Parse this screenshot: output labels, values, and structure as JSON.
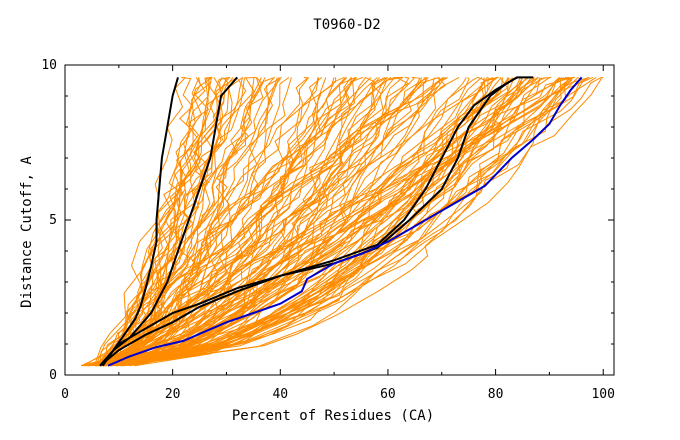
{
  "chart_data": {
    "type": "line",
    "title": "T0960-D2",
    "xlabel": "Percent of Residues (CA)",
    "ylabel": "Distance Cutoff, A",
    "xlim": [
      0,
      102
    ],
    "ylim": [
      0,
      10
    ],
    "x_ticks": [
      0,
      20,
      40,
      60,
      80,
      100
    ],
    "x_tick_labels": [
      "0",
      "20",
      "40",
      "60",
      "80",
      "100"
    ],
    "y_ticks": [
      0,
      5,
      10
    ],
    "y_tick_labels": [
      "0",
      "5",
      "10"
    ],
    "grid": false,
    "legend": "none",
    "background_series_count": 140,
    "background_color": "#ff8c00",
    "highlight_color": "#000000",
    "reference_color": "#0000cc",
    "series": [
      {
        "role": "highlight",
        "x": [
          7,
          9,
          11,
          13,
          14,
          15,
          16,
          17,
          17,
          17.5,
          18,
          19,
          20,
          21
        ],
        "y": [
          0.3,
          0.8,
          1.3,
          1.8,
          2.2,
          2.8,
          3.5,
          4.3,
          5.0,
          6.0,
          7.0,
          8.0,
          9.0,
          9.6
        ]
      },
      {
        "role": "highlight",
        "x": [
          7,
          9,
          12,
          16,
          19,
          21,
          23,
          25,
          27,
          28,
          29,
          32
        ],
        "y": [
          0.3,
          0.8,
          1.2,
          2.0,
          3.0,
          4.0,
          5.0,
          6.0,
          7.0,
          8.0,
          9.0,
          9.6
        ]
      },
      {
        "role": "highlight",
        "x": [
          6.5,
          10,
          15,
          20,
          25,
          32,
          40,
          50,
          58,
          63,
          67,
          70,
          73,
          76,
          80,
          84,
          87
        ],
        "y": [
          0.3,
          1.0,
          1.5,
          2.0,
          2.3,
          2.8,
          3.2,
          3.7,
          4.2,
          5.0,
          6.0,
          7.0,
          8.0,
          8.7,
          9.2,
          9.6,
          9.6
        ]
      },
      {
        "role": "highlight",
        "x": [
          6.5,
          10,
          15,
          20,
          25,
          32,
          40,
          50,
          58,
          64,
          70,
          73,
          75,
          77,
          79,
          82,
          84
        ],
        "y": [
          0.3,
          0.8,
          1.3,
          1.7,
          2.2,
          2.7,
          3.2,
          3.6,
          4.1,
          5.0,
          6.0,
          7.0,
          8.0,
          8.5,
          9.0,
          9.4,
          9.6
        ]
      },
      {
        "role": "reference",
        "x": [
          8,
          12,
          17,
          22,
          26,
          30,
          35,
          40,
          44,
          45,
          50,
          55,
          60,
          66,
          72,
          78,
          83,
          87,
          90,
          92,
          94,
          96
        ],
        "y": [
          0.3,
          0.6,
          0.9,
          1.1,
          1.4,
          1.7,
          2.0,
          2.3,
          2.7,
          3.1,
          3.6,
          3.9,
          4.3,
          4.9,
          5.5,
          6.1,
          7.0,
          7.6,
          8.1,
          8.7,
          9.2,
          9.6
        ]
      }
    ]
  }
}
